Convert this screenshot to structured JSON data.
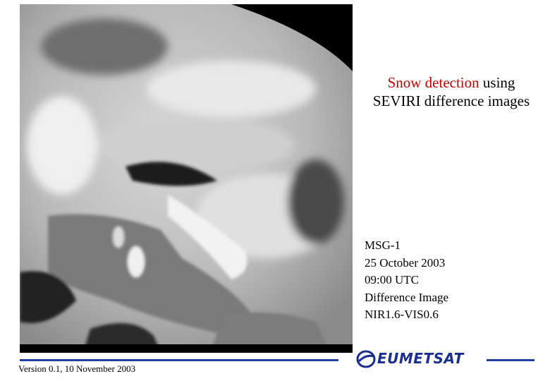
{
  "title": {
    "highlight": "Snow detection",
    "after_highlight": "using",
    "line2": "SEVIRI difference images"
  },
  "info": [
    "MSG-1",
    "25 October 2003",
    "09:00 UTC",
    "Difference Image",
    "NIR1.6-VIS0.6"
  ],
  "footer": {
    "version": "Version 0.1, 10 November 2003"
  },
  "logo": {
    "text": "EUMETSAT"
  }
}
